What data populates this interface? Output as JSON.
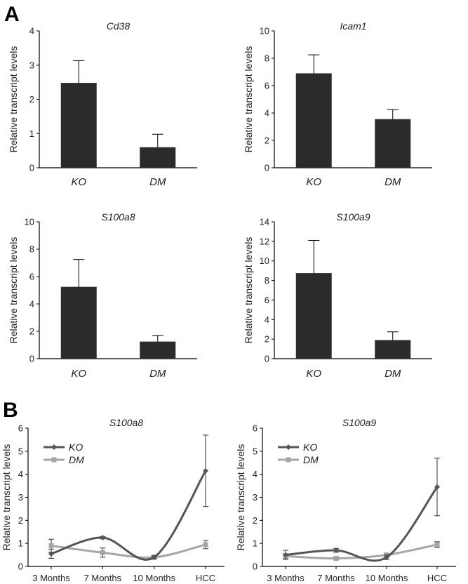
{
  "panels": [
    {
      "letter": "A"
    },
    {
      "letter": "B"
    }
  ],
  "chart_data": [
    {
      "type": "bar",
      "title": "Cd38",
      "ylabel": "Relative transcript levels",
      "categories": [
        "KO",
        "DM"
      ],
      "values": [
        2.48,
        0.6
      ],
      "errors": [
        0.65,
        0.38
      ],
      "ylim": [
        0,
        4
      ],
      "yticks": [
        0,
        1,
        2,
        3,
        4
      ],
      "color": "#2b2b2b"
    },
    {
      "type": "bar",
      "title": "Icam1",
      "ylabel": "Relative transcript levels",
      "categories": [
        "KO",
        "DM"
      ],
      "values": [
        6.9,
        3.55
      ],
      "errors": [
        1.35,
        0.7
      ],
      "ylim": [
        0,
        10
      ],
      "yticks": [
        0,
        2,
        4,
        6,
        8,
        10
      ],
      "color": "#2b2b2b"
    },
    {
      "type": "bar",
      "title": "S100a8",
      "ylabel": "Relative transcript levels",
      "categories": [
        "KO",
        "DM"
      ],
      "values": [
        5.25,
        1.25
      ],
      "errors": [
        2.0,
        0.45
      ],
      "ylim": [
        0,
        10
      ],
      "yticks": [
        0,
        2,
        4,
        6,
        8,
        10
      ],
      "color": "#2b2b2b"
    },
    {
      "type": "bar",
      "title": "S100a9",
      "ylabel": "Relative transcript levels",
      "categories": [
        "KO",
        "DM"
      ],
      "values": [
        8.75,
        1.9
      ],
      "errors": [
        3.35,
        0.85
      ],
      "ylim": [
        0,
        14
      ],
      "yticks": [
        0,
        2,
        4,
        6,
        8,
        10,
        12,
        14
      ],
      "color": "#2b2b2b"
    },
    {
      "type": "line",
      "title": "S100a8",
      "ylabel": "Relative transcript levels",
      "categories": [
        "3 Months",
        "7 Months",
        "10 Months",
        "HCC"
      ],
      "ylim": [
        0,
        6
      ],
      "yticks": [
        0,
        1,
        2,
        3,
        4,
        5,
        6
      ],
      "legend": "top-left",
      "series": [
        {
          "name": "KO",
          "values": [
            0.55,
            1.25,
            0.4,
            4.15
          ],
          "errors": [
            0.2,
            0.05,
            0.08,
            1.55
          ],
          "color": "#555555",
          "marker": "diamond"
        },
        {
          "name": "DM",
          "values": [
            0.9,
            0.6,
            0.4,
            0.95
          ],
          "errors": [
            0.28,
            0.2,
            0.05,
            0.18
          ],
          "color": "#a6a6a6",
          "marker": "square"
        }
      ]
    },
    {
      "type": "line",
      "title": "S100a9",
      "ylabel": "Relative transcript levels",
      "categories": [
        "3 Months",
        "7 Months",
        "10 Months",
        "HCC"
      ],
      "ylim": [
        0,
        6
      ],
      "yticks": [
        0,
        1,
        2,
        3,
        4,
        5,
        6
      ],
      "legend": "top-left",
      "series": [
        {
          "name": "KO",
          "values": [
            0.5,
            0.7,
            0.4,
            3.45
          ],
          "errors": [
            0.2,
            0.08,
            0.1,
            1.25
          ],
          "color": "#555555",
          "marker": "diamond"
        },
        {
          "name": "DM",
          "values": [
            0.45,
            0.35,
            0.5,
            0.95
          ],
          "errors": [
            0.1,
            0.05,
            0.05,
            0.12
          ],
          "color": "#a6a6a6",
          "marker": "square"
        }
      ]
    }
  ]
}
